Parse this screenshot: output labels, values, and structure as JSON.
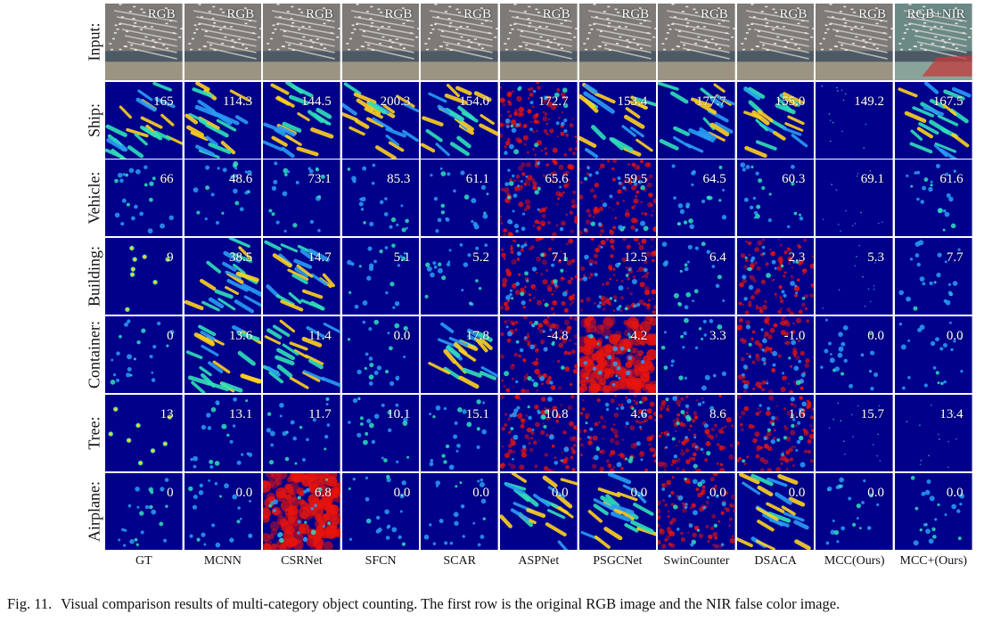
{
  "figure": {
    "input_row_label": "Input:",
    "input_tags": [
      "RGB",
      "RGB",
      "RGB",
      "RGB",
      "RGB",
      "RGB",
      "RGB",
      "RGB",
      "RGB",
      "RGB",
      "RGB+NIR"
    ],
    "methods": [
      "GT",
      "MCNN",
      "CSRNet",
      "SFCN",
      "SCAR",
      "ASPNet",
      "PSGCNet",
      "SwinCounter",
      "DSACA",
      "MCC(Ours)",
      "MCC+(Ours)"
    ],
    "rows": [
      {
        "label": "Ship:",
        "values": [
          "165",
          "114.3",
          "144.5",
          "200.3",
          "154.0",
          "172.7",
          "153.4",
          "177.7",
          "155.0",
          "149.2",
          "167.5"
        ]
      },
      {
        "label": "Vehicle:",
        "values": [
          "66",
          "48.6",
          "73.1",
          "85.3",
          "61.1",
          "65.6",
          "59.5",
          "64.5",
          "60.3",
          "69.1",
          "61.6"
        ]
      },
      {
        "label": "Building:",
        "values": [
          "9",
          "38.5",
          "14.7",
          "5.1",
          "5.2",
          "7.1",
          "12.5",
          "6.4",
          "2.3",
          "5.3",
          "7.7"
        ]
      },
      {
        "label": "Container:",
        "values": [
          "0",
          "13.6",
          "11.4",
          "0.0",
          "17.8",
          "-4.8",
          "4.2",
          "3.3",
          "-1.0",
          "0.0",
          "0.0"
        ]
      },
      {
        "label": "Tree:",
        "values": [
          "13",
          "13.1",
          "11.7",
          "10.1",
          "15.1",
          "10.8",
          "4.6",
          "8.6",
          "1.6",
          "15.7",
          "13.4"
        ]
      },
      {
        "label": "Airplane:",
        "values": [
          "0",
          "0.0",
          "6.8",
          "0.0",
          "0.0",
          "0.0",
          "0.0",
          "0.0",
          "0.0",
          "0.0",
          "0.0"
        ]
      }
    ],
    "colors": {
      "background": "#00008b",
      "hot": "#e8140c",
      "warm": "#ffd21e",
      "cool": "#2a9df4",
      "mid": "#30e0b8"
    }
  },
  "caption": {
    "label": "Fig. 11.",
    "text": "Visual comparison results of multi-category object counting. The first row is the original RGB image and the NIR false color image."
  }
}
